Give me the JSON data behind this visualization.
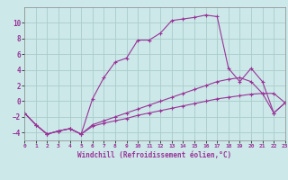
{
  "xlabel": "Windchill (Refroidissement éolien,°C)",
  "ylabel": "",
  "background_color": "#cce8e8",
  "grid_color": "#aacccc",
  "line_color": "#993399",
  "xlim": [
    0,
    23
  ],
  "ylim": [
    -5,
    12
  ],
  "xticks": [
    0,
    1,
    2,
    3,
    4,
    5,
    6,
    7,
    8,
    9,
    10,
    11,
    12,
    13,
    14,
    15,
    16,
    17,
    18,
    19,
    20,
    21,
    22,
    23
  ],
  "yticks": [
    -4,
    -2,
    0,
    2,
    4,
    6,
    8,
    10
  ],
  "lines": [
    {
      "x": [
        0,
        1,
        2,
        3,
        4,
        5,
        6,
        7,
        8,
        9,
        10,
        11,
        12,
        13,
        14,
        15,
        16,
        17,
        18,
        19,
        20,
        21,
        22,
        23
      ],
      "y": [
        -1.5,
        -3.0,
        -4.2,
        -3.8,
        -3.5,
        -4.2,
        -3.2,
        -2.8,
        -2.5,
        -2.2,
        -1.8,
        -1.5,
        -1.2,
        -0.9,
        -0.6,
        -0.3,
        0.0,
        0.3,
        0.5,
        0.7,
        0.9,
        1.0,
        1.0,
        -0.2
      ]
    },
    {
      "x": [
        0,
        1,
        2,
        3,
        4,
        5,
        6,
        7,
        8,
        9,
        10,
        11,
        12,
        13,
        14,
        15,
        16,
        17,
        18,
        19,
        20,
        21,
        22,
        23
      ],
      "y": [
        -1.5,
        -3.0,
        -4.2,
        -3.8,
        -3.5,
        -4.2,
        -3.0,
        -2.5,
        -2.0,
        -1.5,
        -1.0,
        -0.5,
        0.0,
        0.5,
        1.0,
        1.5,
        2.0,
        2.5,
        2.8,
        3.0,
        2.5,
        1.0,
        -1.5,
        -0.2
      ]
    },
    {
      "x": [
        0,
        1,
        2,
        3,
        4,
        5,
        6,
        7,
        8,
        9,
        10,
        11,
        12,
        13,
        14,
        15,
        16,
        17,
        18,
        19,
        20,
        21,
        22,
        23
      ],
      "y": [
        -1.5,
        -3.0,
        -4.2,
        -3.8,
        -3.5,
        -4.2,
        0.3,
        3.0,
        5.0,
        5.5,
        7.8,
        7.8,
        8.7,
        10.3,
        10.5,
        10.7,
        11.0,
        10.8,
        4.2,
        2.5,
        4.2,
        2.5,
        -1.5,
        -0.2
      ]
    }
  ]
}
